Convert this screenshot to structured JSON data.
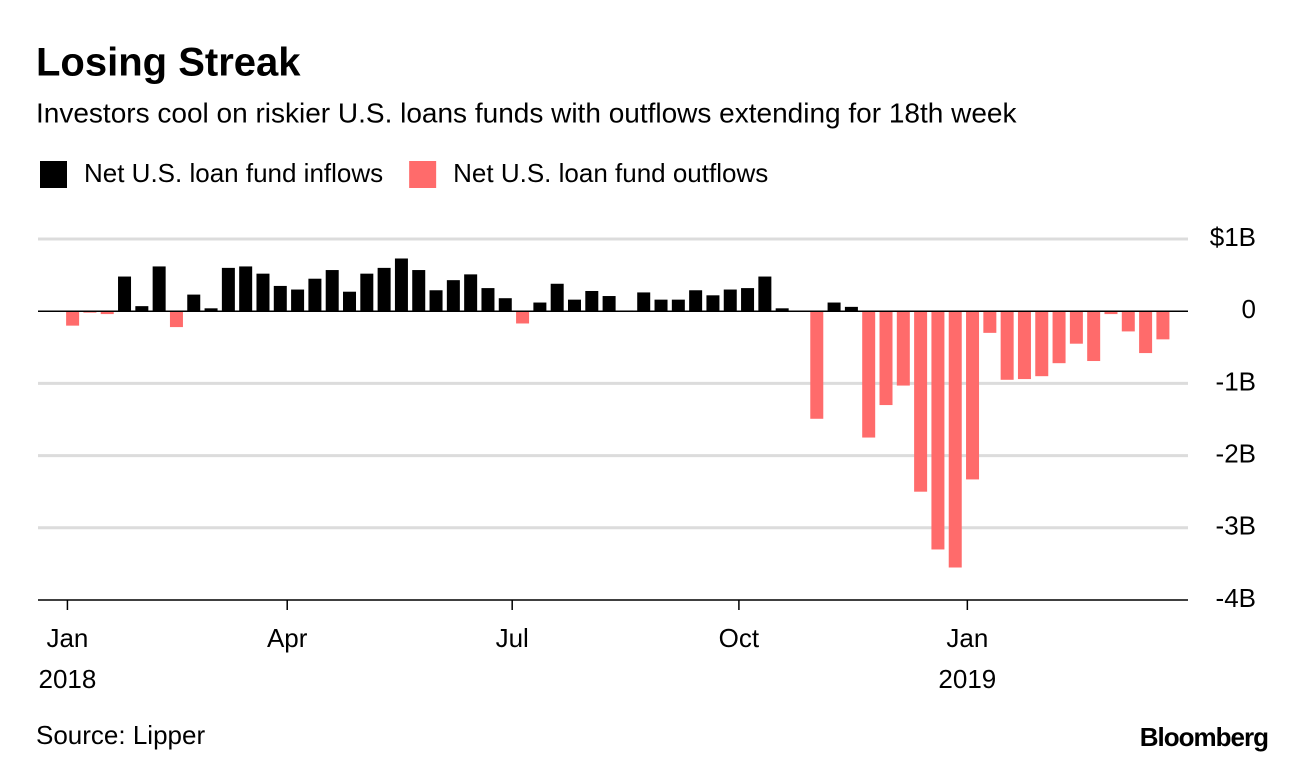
{
  "chart_data": {
    "type": "bar",
    "title": "Losing Streak",
    "subtitle": "Investors cool on riskier U.S. loans funds with outflows extending for 18th week",
    "source": "Source: Lipper",
    "brand": "Bloomberg",
    "x": [
      0,
      1,
      2,
      3,
      4,
      5,
      6,
      7,
      8,
      9,
      10,
      11,
      12,
      13,
      14,
      15,
      16,
      17,
      18,
      19,
      20,
      21,
      22,
      23,
      24,
      25,
      26,
      27,
      28,
      29,
      30,
      31,
      32,
      33,
      34,
      35,
      36,
      37,
      38,
      39,
      40,
      41,
      42,
      43,
      44,
      45,
      46,
      47,
      48,
      49,
      50,
      51,
      52,
      53,
      54,
      55,
      56,
      57,
      58,
      59,
      60,
      61,
      62,
      63
    ],
    "series": [
      {
        "name": "Net U.S. loan fund inflows",
        "color": "#000000",
        "values": [
          null,
          null,
          null,
          0.48,
          0.07,
          0.62,
          null,
          0.23,
          0.04,
          0.6,
          0.62,
          0.52,
          0.35,
          0.3,
          0.45,
          0.57,
          0.27,
          0.52,
          0.6,
          0.73,
          0.57,
          0.29,
          0.43,
          0.51,
          0.32,
          0.18,
          null,
          0.12,
          0.38,
          0.16,
          0.28,
          0.21,
          0.01,
          0.26,
          0.16,
          0.16,
          0.29,
          0.22,
          0.3,
          0.32,
          0.48,
          0.04,
          null,
          null,
          0.12,
          0.06,
          null,
          null,
          null,
          null,
          null,
          null,
          null,
          null,
          null,
          null,
          null,
          null,
          null,
          null,
          null,
          null,
          null,
          null
        ]
      },
      {
        "name": "Net U.S. loan fund outflows",
        "color": "#ff6b6b",
        "values": [
          -0.2,
          -0.02,
          -0.04,
          null,
          null,
          null,
          -0.22,
          null,
          null,
          null,
          null,
          null,
          null,
          null,
          null,
          null,
          null,
          null,
          null,
          null,
          null,
          null,
          null,
          null,
          null,
          null,
          -0.17,
          null,
          null,
          null,
          null,
          null,
          null,
          null,
          null,
          null,
          null,
          null,
          null,
          null,
          null,
          null,
          -0.01,
          -1.49,
          null,
          null,
          -1.75,
          -1.3,
          -1.03,
          -2.5,
          -3.3,
          -3.55,
          -2.33,
          -0.3,
          -0.95,
          -0.94,
          -0.9,
          -0.72,
          -0.45,
          -0.69,
          -0.04,
          -0.28,
          -0.58,
          -0.39
        ]
      }
    ],
    "xlim": [
      -2,
      64.45
    ],
    "xticks": [
      {
        "value": -0.3,
        "label": "Jan"
      },
      {
        "value": 12.4,
        "label": "Apr"
      },
      {
        "value": 25.4,
        "label": "Jul"
      },
      {
        "value": 38.5,
        "label": "Oct"
      },
      {
        "value": 51.7,
        "label": "Jan"
      }
    ],
    "year_labels": [
      {
        "value": -0.3,
        "label": "2018"
      },
      {
        "value": 51.7,
        "label": "2019"
      }
    ],
    "ylim": [
      -4,
      1
    ],
    "yticks": [
      {
        "value": 1,
        "label": "$1B"
      },
      0,
      {
        "value": -1,
        "label": "-1B"
      },
      {
        "value": -2,
        "label": "-2B"
      },
      {
        "value": -3,
        "label": "-3B"
      },
      {
        "value": -4,
        "label": "-4B"
      }
    ],
    "grid": true
  }
}
